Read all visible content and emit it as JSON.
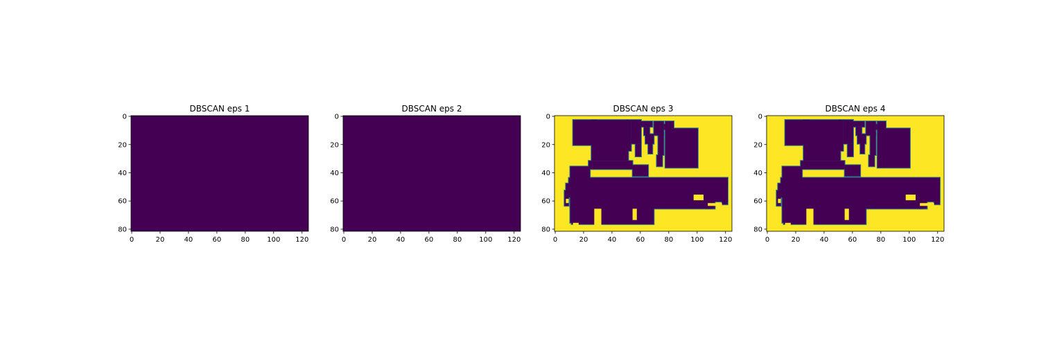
{
  "chart_data": [
    {
      "type": "heatmap",
      "title": "DBSCAN eps 1",
      "colormap": "viridis",
      "fill": "uniform",
      "value_range": [
        0,
        1
      ],
      "xlim": [
        0,
        124
      ],
      "ylim": [
        81,
        0
      ],
      "xticks": [
        0,
        20,
        40,
        60,
        80,
        100,
        120
      ],
      "yticks": [
        0,
        20,
        40,
        60,
        80
      ],
      "xtick_labels": [
        "0",
        "20",
        "40",
        "60",
        "80",
        "100",
        "120"
      ],
      "ytick_labels": [
        "0",
        "20",
        "40",
        "60",
        "80"
      ]
    },
    {
      "type": "heatmap",
      "title": "DBSCAN eps 2",
      "colormap": "viridis",
      "fill": "uniform",
      "value_range": [
        0,
        1
      ],
      "xlim": [
        0,
        124
      ],
      "ylim": [
        81,
        0
      ],
      "xticks": [
        0,
        20,
        40,
        60,
        80,
        100,
        120
      ],
      "yticks": [
        0,
        20,
        40,
        60,
        80
      ],
      "xtick_labels": [
        "0",
        "20",
        "40",
        "60",
        "80",
        "100",
        "120"
      ],
      "ytick_labels": [
        "0",
        "20",
        "40",
        "60",
        "80"
      ]
    },
    {
      "type": "heatmap",
      "title": "DBSCAN eps 3",
      "colormap": "viridis",
      "fill": "floorplan",
      "value_range": [
        0,
        1
      ],
      "xlim": [
        0,
        124
      ],
      "ylim": [
        81,
        0
      ],
      "xticks": [
        0,
        20,
        40,
        60,
        80,
        100,
        120
      ],
      "yticks": [
        0,
        20,
        40,
        60,
        80
      ],
      "xtick_labels": [
        "0",
        "20",
        "40",
        "60",
        "80",
        "100",
        "120"
      ],
      "ytick_labels": [
        "0",
        "20",
        "40",
        "60",
        "80"
      ]
    },
    {
      "type": "heatmap",
      "title": "DBSCAN eps 4",
      "colormap": "viridis",
      "fill": "floorplan",
      "value_range": [
        0,
        1
      ],
      "xlim": [
        0,
        124
      ],
      "ylim": [
        81,
        0
      ],
      "xticks": [
        0,
        20,
        40,
        60,
        80,
        100,
        120
      ],
      "yticks": [
        0,
        20,
        40,
        60,
        80
      ],
      "xtick_labels": [
        "0",
        "20",
        "40",
        "60",
        "80",
        "100",
        "120"
      ],
      "ytick_labels": [
        "0",
        "20",
        "40",
        "60",
        "80"
      ]
    }
  ],
  "colors": {
    "low": "#440154",
    "high": "#fde725",
    "edge": "#2a788e"
  },
  "floorplan_regions": [
    [
      13,
      3,
      30,
      21
    ],
    [
      26,
      3,
      52,
      32
    ],
    [
      51,
      3,
      54,
      25
    ],
    [
      54,
      3,
      61,
      20
    ],
    [
      57,
      20,
      61,
      29
    ],
    [
      61,
      4,
      69,
      8
    ],
    [
      63,
      8,
      67,
      14
    ],
    [
      64,
      13,
      70,
      20
    ],
    [
      66,
      19,
      69,
      27
    ],
    [
      70,
      4,
      77,
      14
    ],
    [
      73,
      12,
      77,
      28
    ],
    [
      72,
      28,
      76,
      36
    ],
    [
      77,
      6,
      84,
      10
    ],
    [
      78,
      4,
      84,
      7
    ],
    [
      78,
      9,
      101,
      37
    ],
    [
      24,
      32,
      55,
      38
    ],
    [
      55,
      35,
      66,
      43
    ],
    [
      11,
      36,
      25,
      44
    ],
    [
      10,
      44,
      122,
      49
    ],
    [
      11,
      44,
      122,
      61
    ],
    [
      8,
      48,
      12,
      58
    ],
    [
      7,
      53,
      10,
      64
    ],
    [
      118,
      44,
      122,
      63
    ],
    [
      11,
      60,
      110,
      66
    ],
    [
      11,
      60,
      48,
      76
    ],
    [
      12,
      65,
      28,
      77
    ],
    [
      32,
      65,
      70,
      77
    ],
    [
      104,
      58,
      113,
      65
    ],
    [
      107,
      64,
      113,
      66
    ]
  ],
  "floorplan_holes": [
    [
      13,
      76,
      17,
      82
    ],
    [
      28,
      66,
      33,
      82
    ],
    [
      55,
      66,
      58,
      74
    ],
    [
      108,
      62,
      118,
      64
    ],
    [
      98,
      56,
      105,
      60
    ],
    [
      8,
      59,
      10,
      62
    ]
  ]
}
